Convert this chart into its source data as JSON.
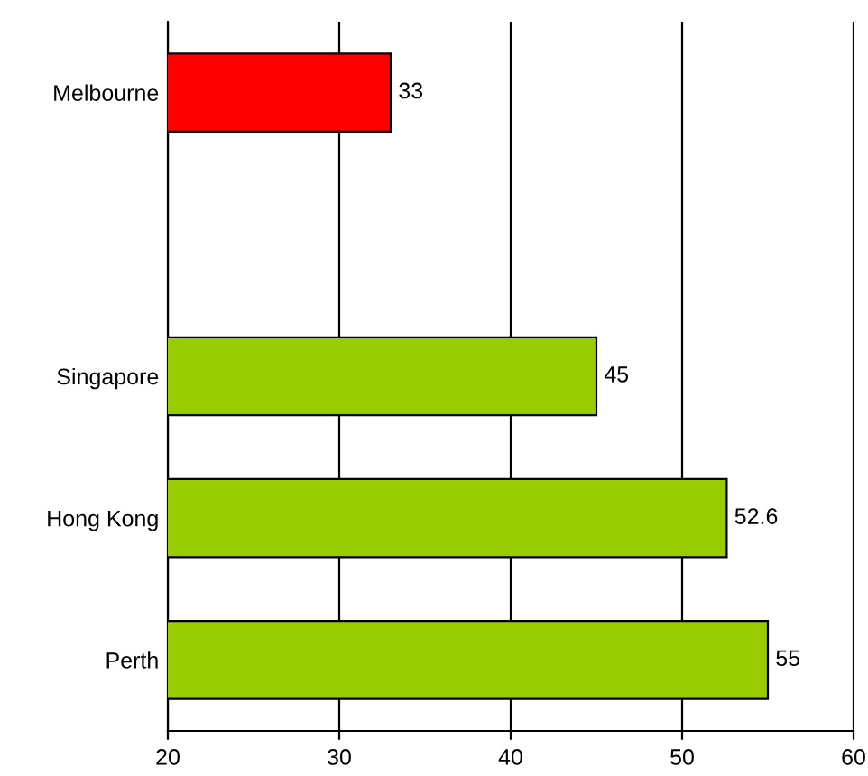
{
  "chart_data": {
    "type": "bar",
    "orientation": "horizontal",
    "categories": [
      "Melbourne",
      null,
      "Singapore",
      "Hong Kong",
      "Perth"
    ],
    "values": [
      33,
      null,
      45,
      52.6,
      55
    ],
    "colors": [
      "#ff0000",
      null,
      "#99cc00",
      "#99cc00",
      "#99cc00"
    ],
    "xlim": [
      20,
      60
    ],
    "xticks": [
      20,
      30,
      40,
      50,
      60
    ],
    "grid": "x",
    "data_labels": true
  }
}
